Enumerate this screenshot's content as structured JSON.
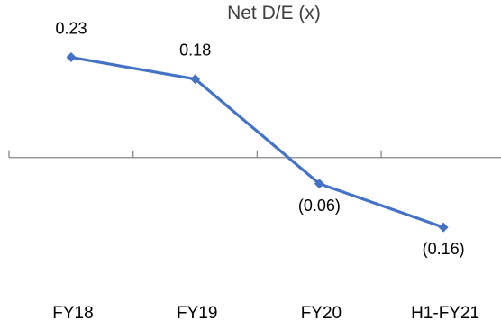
{
  "chart_data": {
    "type": "line",
    "title": "Net D/E (x)",
    "xlabel": "",
    "ylabel": "",
    "categories": [
      "FY18",
      "FY19",
      "FY20",
      "H1-FY21"
    ],
    "series": [
      {
        "values": [
          0.23,
          0.18,
          -0.06,
          -0.16
        ],
        "data_labels": [
          "0.23",
          "0.18",
          "(0.06)",
          "(0.16)"
        ]
      }
    ],
    "ylim": [
      -0.29,
      0.32
    ],
    "grid": false,
    "legend": "none",
    "colors": {
      "line": "#4472C4",
      "axis": "#868686"
    }
  }
}
